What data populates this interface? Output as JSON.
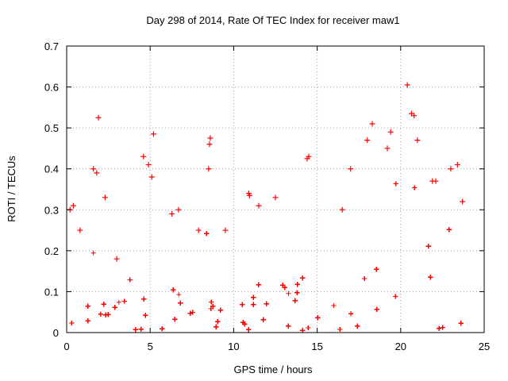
{
  "chart_data": {
    "type": "scatter",
    "title": "Day 298 of 2014, Rate Of TEC Index for receiver maw1",
    "xlabel": "GPS time / hours",
    "ylabel": "ROTI / TECUs",
    "xlim": [
      0,
      25
    ],
    "ylim": [
      0,
      0.7
    ],
    "xticks": [
      0,
      5,
      10,
      15,
      20,
      25
    ],
    "yticks": [
      0,
      0.1,
      0.2,
      0.3,
      0.4,
      0.5,
      0.6,
      0.7
    ],
    "xtick_labels": [
      "0",
      "5",
      "10",
      "15",
      "20",
      "25"
    ],
    "ytick_labels": [
      "0",
      "0.1",
      "0.2",
      "0.3",
      "0.4",
      "0.5",
      "0.6",
      "0.7"
    ],
    "grid": true,
    "marker": "+",
    "color": "#ff0000",
    "points": [
      [
        1.9,
        0.525
      ],
      [
        5.2,
        0.485
      ],
      [
        8.6,
        0.475
      ],
      [
        8.55,
        0.46
      ],
      [
        8.5,
        0.4
      ],
      [
        18.3,
        0.51
      ],
      [
        20.4,
        0.605
      ],
      [
        20.8,
        0.53
      ],
      [
        20.65,
        0.535
      ],
      [
        19.4,
        0.49
      ],
      [
        19.2,
        0.45
      ],
      [
        18.0,
        0.47
      ],
      [
        21.0,
        0.47
      ],
      [
        4.6,
        0.43
      ],
      [
        5.1,
        0.38
      ],
      [
        14.5,
        0.43
      ],
      [
        14.4,
        0.425
      ],
      [
        10.9,
        0.34
      ],
      [
        10.95,
        0.335
      ],
      [
        4.9,
        0.41
      ],
      [
        1.6,
        0.4
      ],
      [
        1.8,
        0.39
      ],
      [
        2.3,
        0.33
      ],
      [
        0.4,
        0.31
      ],
      [
        0.2,
        0.3
      ],
      [
        6.7,
        0.3
      ],
      [
        9.5,
        0.25
      ],
      [
        12.5,
        0.33
      ],
      [
        16.5,
        0.3
      ],
      [
        23.4,
        0.41
      ],
      [
        23.7,
        0.32
      ],
      [
        23.0,
        0.4
      ],
      [
        22.1,
        0.37
      ],
      [
        21.9,
        0.37
      ],
      [
        17.0,
        0.4
      ],
      [
        0.8,
        0.25
      ],
      [
        3.0,
        0.18
      ],
      [
        6.3,
        0.29
      ],
      [
        7.9,
        0.25
      ],
      [
        11.5,
        0.31
      ]
    ]
  }
}
